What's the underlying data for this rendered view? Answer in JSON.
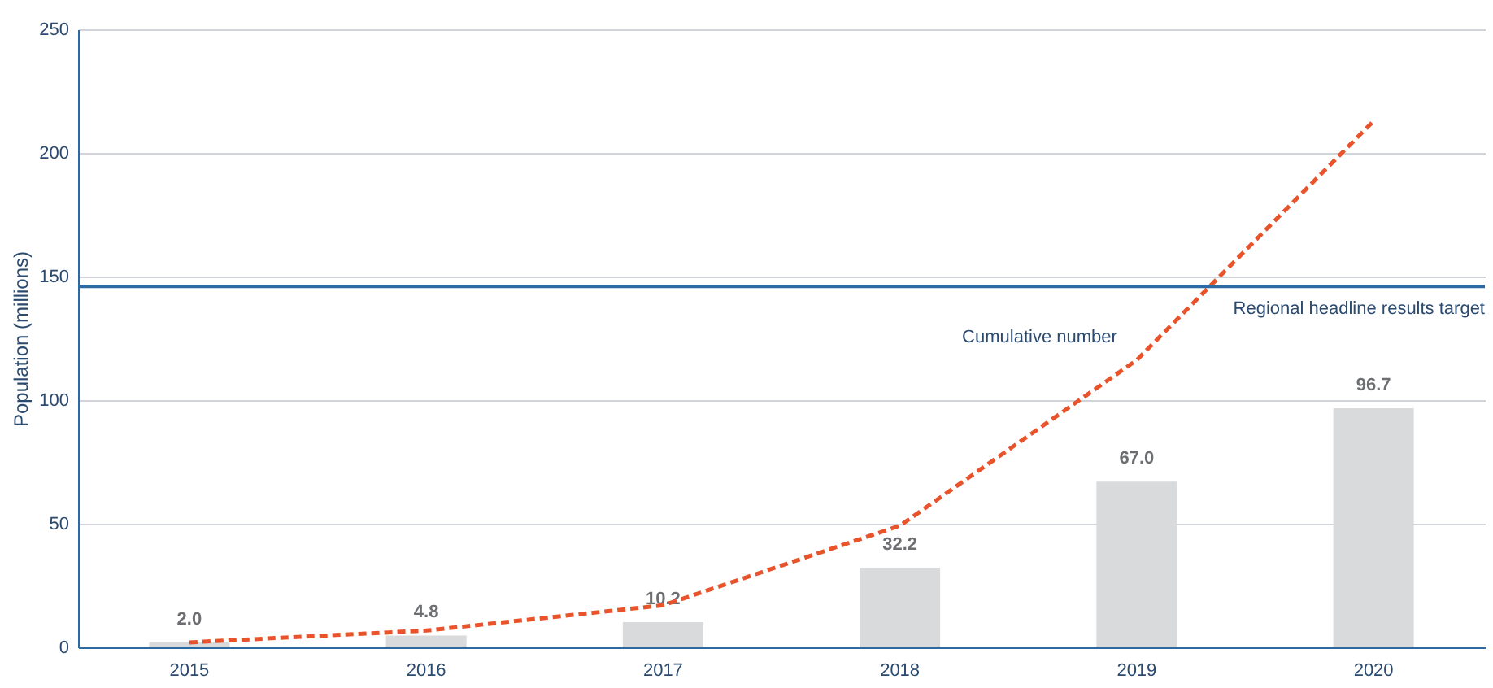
{
  "chart_data": {
    "type": "bar",
    "ylabel": "Population (millions)",
    "categories": [
      "2015",
      "2016",
      "2017",
      "2018",
      "2019",
      "2020"
    ],
    "series": [
      {
        "color": "#d9dadc",
        "values": [
          2.0,
          4.8,
          10.2,
          32.2,
          67.0,
          96.7
        ],
        "value_labels": [
          "2.0",
          "4.8",
          "10.2",
          "32.2",
          "67.0",
          "96.7"
        ]
      },
      {
        "type": "line",
        "name": "Cumulative number",
        "color": "#e8532b",
        "line_style": "dashed",
        "values": [
          2.0,
          6.8,
          17.0,
          49.2,
          116.2,
          212.9
        ]
      }
    ],
    "ylim": [
      0,
      250
    ],
    "yticks": [
      0,
      50,
      100,
      150,
      200,
      250
    ],
    "grid": "y",
    "ref_lines": [
      {
        "axis": "y",
        "value": 146,
        "label": "Regional headline results target",
        "color": "#2d6aa3"
      }
    ]
  }
}
